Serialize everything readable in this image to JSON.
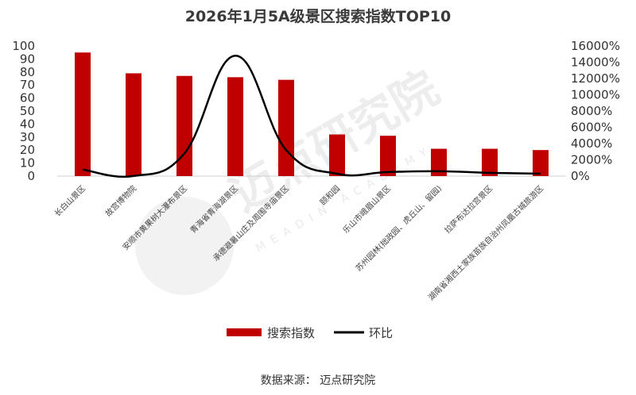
{
  "chart_data": {
    "type": "bar",
    "title": "2026年1月5A级景区搜索指数TOP10",
    "categories": [
      "长白山景区",
      "故宫博物院",
      "安顺市黄果树大瀑布景区",
      "青海省青海湖景区",
      "承德避暑山庄及周围寺庙景区",
      "颐和园",
      "乐山市峨眉山景区",
      "苏州园林(拙政园、虎丘山、留园)",
      "拉萨布达拉宫景区",
      "湖南省湘西土家族苗族自治州凤凰古城旅游区"
    ],
    "series": [
      {
        "name": "搜索指数",
        "type": "bar",
        "axis": "left",
        "color": "#c00000",
        "values": [
          95,
          79,
          77,
          76,
          74,
          32,
          31,
          21,
          21,
          20
        ]
      },
      {
        "name": "环比",
        "type": "line",
        "axis": "right",
        "color": "#000000",
        "smooth": true,
        "values": [
          800,
          10,
          2800,
          14800,
          3200,
          280,
          500,
          600,
          400,
          300
        ]
      }
    ],
    "left_axis": {
      "min": 0,
      "max": 100,
      "step": 10,
      "ticks": [
        "0",
        "10",
        "20",
        "30",
        "40",
        "50",
        "60",
        "70",
        "80",
        "90",
        "100"
      ]
    },
    "right_axis": {
      "min": 0,
      "max": 16000,
      "step": 2000,
      "ticks": [
        "0%",
        "2000%",
        "4000%",
        "6000%",
        "8000%",
        "10000%",
        "12000%",
        "14000%",
        "16000%"
      ]
    },
    "legend": {
      "position": "bottom",
      "items": [
        "搜索指数",
        "环比"
      ]
    },
    "grid": false
  },
  "watermark": {
    "text": "迈点研究院",
    "subtext": "MEADIN ACADEMY"
  },
  "source_text": "数据来源： 迈点研究院"
}
